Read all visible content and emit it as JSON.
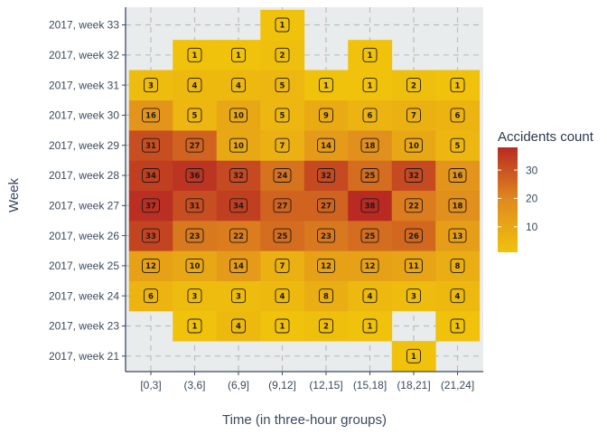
{
  "chart_data": {
    "type": "heatmap",
    "xlabel": "Time (in three-hour groups)",
    "ylabel": "Week",
    "x_categories": [
      "[0,3]",
      "(3,6]",
      "(6,9]",
      "(9,12]",
      "(12,15]",
      "(15,18]",
      "(18,21]",
      "(21,24]"
    ],
    "y_categories": [
      "2017, week 21",
      "2017, week 23",
      "2017, week 24",
      "2017, week 25",
      "2017, week 26",
      "2017, week 27",
      "2017, week 28",
      "2017, week 29",
      "2017, week 30",
      "2017, week 31",
      "2017, week 32",
      "2017, week 33"
    ],
    "values": [
      [
        null,
        null,
        null,
        null,
        null,
        null,
        1,
        null
      ],
      [
        null,
        1,
        4,
        1,
        2,
        1,
        null,
        1
      ],
      [
        6,
        3,
        3,
        4,
        8,
        4,
        3,
        4
      ],
      [
        12,
        10,
        14,
        7,
        12,
        12,
        11,
        8
      ],
      [
        33,
        23,
        22,
        25,
        23,
        25,
        26,
        13
      ],
      [
        37,
        31,
        34,
        27,
        27,
        38,
        22,
        18
      ],
      [
        34,
        36,
        32,
        24,
        32,
        25,
        32,
        16
      ],
      [
        31,
        27,
        10,
        7,
        14,
        18,
        10,
        5
      ],
      [
        16,
        5,
        10,
        5,
        9,
        6,
        7,
        6
      ],
      [
        3,
        4,
        4,
        5,
        1,
        1,
        2,
        1
      ],
      [
        null,
        1,
        1,
        2,
        null,
        1,
        null,
        null
      ],
      [
        null,
        null,
        null,
        1,
        null,
        null,
        null,
        null
      ]
    ],
    "legend": {
      "title": "Accidents count",
      "ticks": [
        10,
        20,
        30
      ],
      "range": [
        1,
        38
      ],
      "colors": [
        "#f0c20c",
        "#e08a1e",
        "#b82a22"
      ]
    },
    "colors": {
      "panel_background": "#e8eced",
      "grid": "#bdbdbd",
      "axis": "#3a4a5e"
    }
  }
}
